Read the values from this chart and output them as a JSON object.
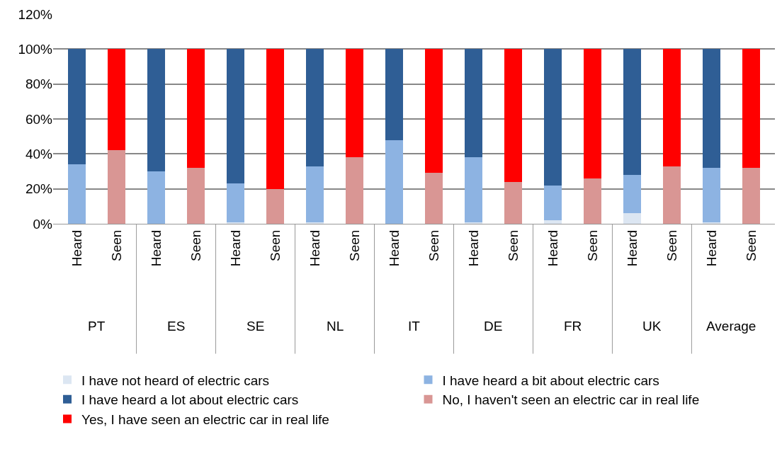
{
  "chart_data": {
    "type": "bar",
    "stacked": true,
    "categories": [
      "Heard",
      "Seen",
      "Heard",
      "Seen",
      "Heard",
      "Seen",
      "Heard",
      "Seen",
      "Heard",
      "Seen",
      "Heard",
      "Seen",
      "Heard",
      "Seen",
      "Heard",
      "Seen",
      "Heard",
      "Seen"
    ],
    "annotations": [
      "PT",
      "ES",
      "SE",
      "NL",
      "IT",
      "DE",
      "FR",
      "UK",
      "Average"
    ],
    "series": [
      {
        "name": "I have not heard of electric cars",
        "color": "#dce6f2",
        "values": [
          0,
          null,
          0,
          null,
          1,
          null,
          1,
          null,
          0,
          null,
          1,
          null,
          2,
          null,
          6,
          null,
          1,
          null
        ]
      },
      {
        "name": "I have heard a bit about electric cars",
        "color": "#8db3e2",
        "values": [
          34,
          null,
          30,
          null,
          22,
          null,
          32,
          null,
          48,
          null,
          37,
          null,
          20,
          null,
          22,
          null,
          31,
          null
        ]
      },
      {
        "name": "I have heard a lot about electric cars",
        "color": "#2f5e95",
        "values": [
          66,
          null,
          70,
          null,
          77,
          null,
          67,
          null,
          52,
          null,
          62,
          null,
          78,
          null,
          72,
          null,
          68,
          null
        ]
      },
      {
        "name": "No, I haven't seen an electric car in real life",
        "color": "#d99694",
        "values": [
          null,
          42,
          null,
          32,
          null,
          20,
          null,
          38,
          null,
          29,
          null,
          24,
          null,
          26,
          null,
          33,
          null,
          32
        ]
      },
      {
        "name": "Yes, I have seen an electric car in real life",
        "color": "#ff0000",
        "values": [
          null,
          58,
          null,
          68,
          null,
          80,
          null,
          62,
          null,
          71,
          null,
          76,
          null,
          74,
          null,
          67,
          null,
          68
        ]
      }
    ],
    "ylim": [
      0,
      120
    ],
    "yticks": [
      {
        "value": 0,
        "label": "0%"
      },
      {
        "value": 20,
        "label": "20%"
      },
      {
        "value": 40,
        "label": "40%"
      },
      {
        "value": 60,
        "label": "60%"
      },
      {
        "value": 80,
        "label": "80%"
      },
      {
        "value": 100,
        "label": "100%"
      },
      {
        "value": 120,
        "label": "120%"
      }
    ],
    "grid": "y",
    "legend": "bottom"
  }
}
